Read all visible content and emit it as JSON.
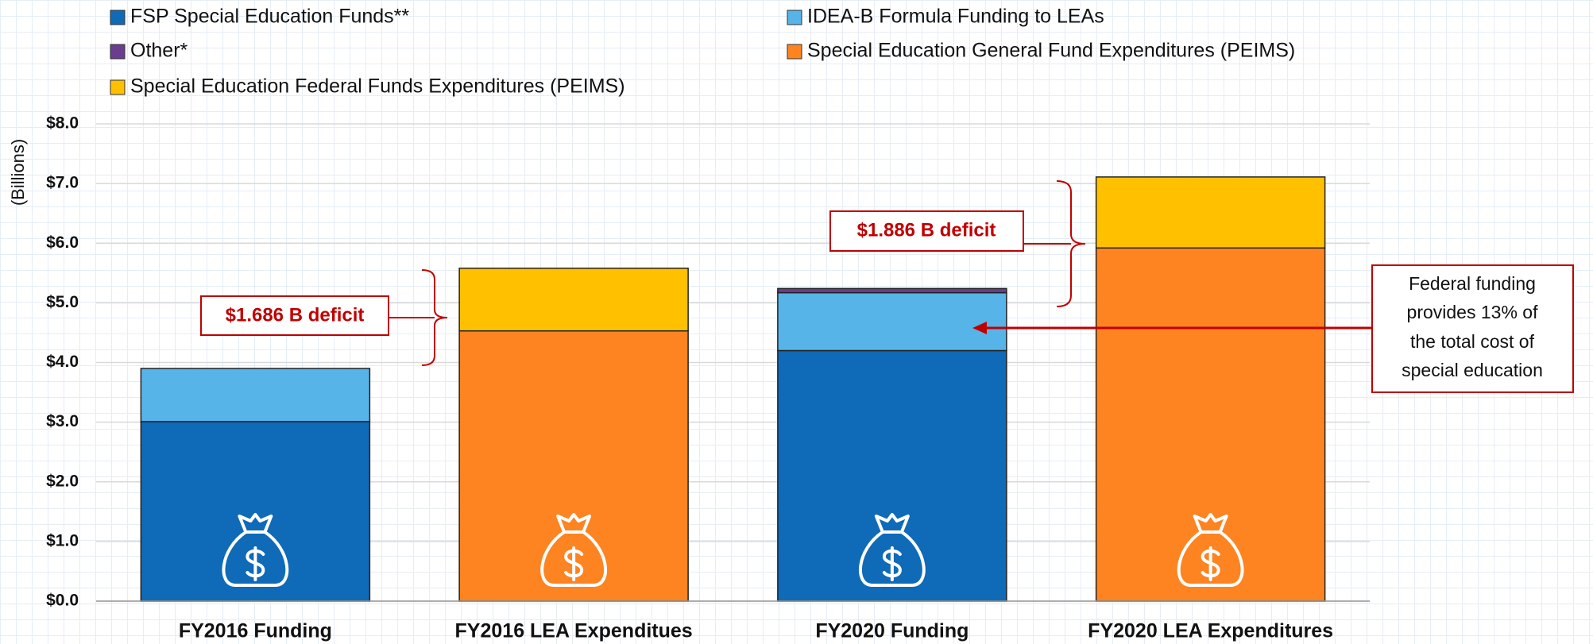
{
  "chart_data": {
    "type": "stacked_bar",
    "y_label": "(Billions)",
    "categories": [
      "FY2016 Funding",
      "FY2016 LEA Expenditues",
      "FY2020 Funding",
      "FY2020 LEA Expenditures"
    ],
    "series": [
      {
        "name": "FSP Special Education Funds**",
        "color": "#0f6ab8",
        "values": [
          3.01,
          null,
          4.2,
          null
        ]
      },
      {
        "name": "IDEA-B Formula Funding to LEAs",
        "color": "#56b4e9",
        "values": [
          0.89,
          null,
          0.97,
          null
        ]
      },
      {
        "name": "Other*",
        "color": "#6a3d8f",
        "values": [
          null,
          null,
          0.07,
          null
        ]
      },
      {
        "name": "Special Education General Fund Expenditures (PEIMS)",
        "color": "#fd8421",
        "values": [
          null,
          4.53,
          null,
          5.92
        ]
      },
      {
        "name": "Special Education Federal Funds Expenditures (PEIMS)",
        "color": "#ffc000",
        "values": [
          null,
          1.05,
          null,
          1.19
        ]
      }
    ],
    "ylim": [
      0,
      8
    ],
    "yticks": [
      {
        "value": 0,
        "label": "$0.0"
      },
      {
        "value": 1,
        "label": "$1.0"
      },
      {
        "value": 2,
        "label": "$2.0"
      },
      {
        "value": 3,
        "label": "$3.0"
      },
      {
        "value": 4,
        "label": "$4.0"
      },
      {
        "value": 5,
        "label": "$5.0"
      },
      {
        "value": 6,
        "label": "$6.0"
      },
      {
        "value": 7,
        "label": "$7.0"
      },
      {
        "value": 8,
        "label": "$8.0"
      }
    ],
    "grid": true,
    "annotations": [
      "$1.686 B deficit",
      "$1.886 B deficit"
    ],
    "note_lines": [
      "Federal funding",
      "provides 13% of",
      "the total cost of",
      "special education"
    ]
  }
}
